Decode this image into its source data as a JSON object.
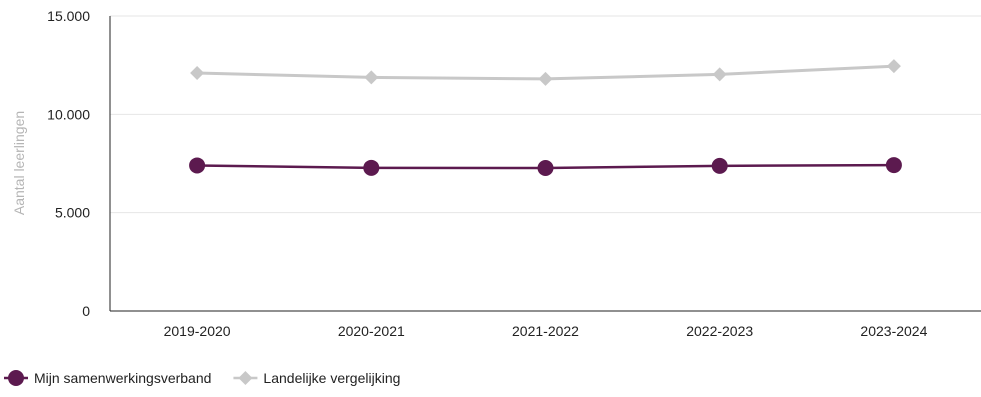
{
  "chart_data": {
    "type": "line",
    "title": "",
    "xlabel": "",
    "ylabel": "Aantal leerlingen",
    "categories": [
      "2019-2020",
      "2020-2021",
      "2021-2022",
      "2022-2023",
      "2023-2024"
    ],
    "ylim": [
      0,
      15000
    ],
    "yticks": [
      0,
      5000,
      10000,
      15000
    ],
    "ytick_labels": [
      "0",
      "5.000",
      "10.000",
      "15.000"
    ],
    "grid": true,
    "legend_position": "bottom-left",
    "series": [
      {
        "name": "Mijn samenwerkingsverband",
        "values": [
          7400,
          7280,
          7270,
          7380,
          7420
        ],
        "color": "#5c1a4f",
        "marker": "circle"
      },
      {
        "name": "Landelijke vergelijking",
        "values": [
          12100,
          11880,
          11800,
          12030,
          12450
        ],
        "color": "#c8c8c8",
        "marker": "diamond"
      }
    ]
  }
}
